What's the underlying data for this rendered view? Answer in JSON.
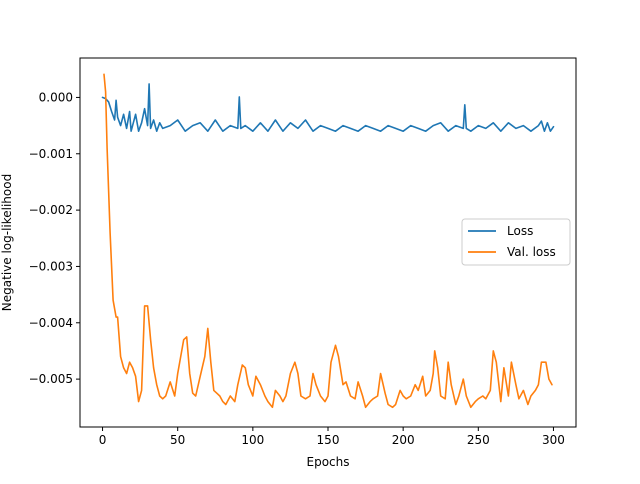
{
  "chart_data": {
    "type": "line",
    "title": "",
    "xlabel": "Epochs",
    "ylabel": "Negative log-likelihood",
    "xlim": [
      -15,
      315
    ],
    "ylim": [
      -0.00585,
      0.0007
    ],
    "xticks": [
      0,
      50,
      100,
      150,
      200,
      250,
      300
    ],
    "xtick_labels": [
      "0",
      "50",
      "100",
      "150",
      "200",
      "250",
      "300"
    ],
    "yticks": [
      0.0,
      -0.001,
      -0.002,
      -0.003,
      -0.004,
      -0.005
    ],
    "ytick_labels": [
      "0.000",
      "−0.001",
      "−0.002",
      "−0.003",
      "−0.004",
      "−0.005"
    ],
    "legend_position": "center-right",
    "grid": false,
    "series": [
      {
        "name": "Loss",
        "color": "#1f77b4",
        "x": [
          0,
          2,
          4,
          6,
          8,
          9,
          10,
          12,
          14,
          16,
          18,
          19,
          20,
          22,
          24,
          26,
          28,
          30,
          31,
          32,
          34,
          36,
          38,
          40,
          45,
          50,
          55,
          60,
          65,
          70,
          75,
          80,
          85,
          90,
          91,
          92,
          95,
          100,
          105,
          110,
          115,
          120,
          125,
          130,
          135,
          140,
          145,
          150,
          155,
          160,
          165,
          170,
          175,
          180,
          185,
          190,
          195,
          200,
          205,
          210,
          215,
          220,
          225,
          230,
          235,
          240,
          241,
          242,
          245,
          250,
          255,
          260,
          265,
          270,
          275,
          280,
          285,
          290,
          292,
          294,
          296,
          298,
          300
        ],
        "y": [
          0.0,
          -2e-05,
          -8e-05,
          -0.00025,
          -0.0004,
          -5e-05,
          -0.00035,
          -0.0005,
          -0.0003,
          -0.00055,
          -0.00025,
          -0.0006,
          -0.0005,
          -0.0003,
          -0.0006,
          -0.00045,
          -0.0002,
          -0.0005,
          0.00024,
          -0.00055,
          -0.0004,
          -0.0006,
          -0.00045,
          -0.00055,
          -0.0005,
          -0.0004,
          -0.0006,
          -0.0005,
          -0.00045,
          -0.0006,
          -0.0004,
          -0.0006,
          -0.0005,
          -0.00055,
          1e-05,
          -0.00055,
          -0.0005,
          -0.0006,
          -0.00045,
          -0.0006,
          -0.0004,
          -0.0006,
          -0.00045,
          -0.00055,
          -0.0004,
          -0.0006,
          -0.0005,
          -0.00055,
          -0.0006,
          -0.0005,
          -0.00055,
          -0.0006,
          -0.0005,
          -0.00055,
          -0.0006,
          -0.0005,
          -0.00055,
          -0.0006,
          -0.0005,
          -0.00055,
          -0.0006,
          -0.0005,
          -0.00045,
          -0.0006,
          -0.0005,
          -0.00055,
          -0.00013,
          -0.00055,
          -0.0006,
          -0.0005,
          -0.00055,
          -0.00045,
          -0.0006,
          -0.00045,
          -0.00055,
          -0.0005,
          -0.0006,
          -0.0005,
          -0.00042,
          -0.0006,
          -0.00045,
          -0.0006,
          -0.00052
        ]
      },
      {
        "name": "Val. loss",
        "color": "#ff7f0e",
        "x": [
          1,
          2,
          3,
          5,
          7,
          9,
          10,
          12,
          14,
          16,
          18,
          20,
          22,
          24,
          25,
          26,
          28,
          30,
          32,
          34,
          36,
          38,
          40,
          42,
          45,
          48,
          50,
          52,
          54,
          56,
          58,
          60,
          62,
          65,
          68,
          70,
          72,
          74,
          76,
          78,
          80,
          82,
          85,
          88,
          90,
          93,
          95,
          97,
          100,
          102,
          105,
          108,
          110,
          113,
          115,
          118,
          120,
          122,
          125,
          128,
          130,
          132,
          135,
          138,
          140,
          142,
          145,
          148,
          150,
          152,
          155,
          157,
          160,
          162,
          165,
          168,
          170,
          173,
          175,
          178,
          180,
          183,
          185,
          188,
          190,
          193,
          195,
          198,
          200,
          202,
          205,
          208,
          210,
          213,
          215,
          218,
          220,
          221,
          223,
          225,
          228,
          230,
          232,
          235,
          237,
          240,
          242,
          245,
          248,
          250,
          253,
          255,
          258,
          260,
          262,
          265,
          267,
          270,
          272,
          275,
          277,
          280,
          283,
          285,
          288,
          290,
          292,
          295,
          297,
          299
        ],
        "y": [
          0.00041,
          0.0001,
          -0.0009,
          -0.0024,
          -0.0036,
          -0.0039,
          -0.0039,
          -0.0046,
          -0.0048,
          -0.0049,
          -0.0047,
          -0.0048,
          -0.00495,
          -0.0054,
          -0.0053,
          -0.0052,
          -0.0037,
          -0.0037,
          -0.0043,
          -0.0048,
          -0.0051,
          -0.0053,
          -0.00535,
          -0.0053,
          -0.00505,
          -0.0053,
          -0.0049,
          -0.0046,
          -0.0043,
          -0.00425,
          -0.0049,
          -0.00525,
          -0.0053,
          -0.00495,
          -0.0046,
          -0.0041,
          -0.0047,
          -0.0052,
          -0.00525,
          -0.0053,
          -0.0054,
          -0.00545,
          -0.0053,
          -0.0054,
          -0.0051,
          -0.00475,
          -0.0048,
          -0.0051,
          -0.0053,
          -0.00495,
          -0.0051,
          -0.0053,
          -0.0054,
          -0.0055,
          -0.0052,
          -0.0053,
          -0.0054,
          -0.0053,
          -0.0049,
          -0.0047,
          -0.0049,
          -0.0053,
          -0.00535,
          -0.0053,
          -0.0049,
          -0.0051,
          -0.0053,
          -0.0054,
          -0.0053,
          -0.0047,
          -0.0044,
          -0.0046,
          -0.0051,
          -0.00505,
          -0.0053,
          -0.00535,
          -0.00505,
          -0.0053,
          -0.0055,
          -0.0054,
          -0.00535,
          -0.0053,
          -0.0049,
          -0.00525,
          -0.00545,
          -0.0055,
          -0.00545,
          -0.0052,
          -0.0053,
          -0.00535,
          -0.0053,
          -0.0051,
          -0.0052,
          -0.00495,
          -0.0053,
          -0.0052,
          -0.0049,
          -0.0045,
          -0.0048,
          -0.0053,
          -0.00535,
          -0.0047,
          -0.0051,
          -0.00545,
          -0.0053,
          -0.005,
          -0.0053,
          -0.0055,
          -0.0054,
          -0.00535,
          -0.0053,
          -0.00535,
          -0.0052,
          -0.0045,
          -0.0047,
          -0.0054,
          -0.0048,
          -0.0053,
          -0.0047,
          -0.0051,
          -0.00535,
          -0.0052,
          -0.00545,
          -0.0053,
          -0.0052,
          -0.0051,
          -0.0047,
          -0.0047,
          -0.005,
          -0.0051
        ]
      }
    ]
  }
}
